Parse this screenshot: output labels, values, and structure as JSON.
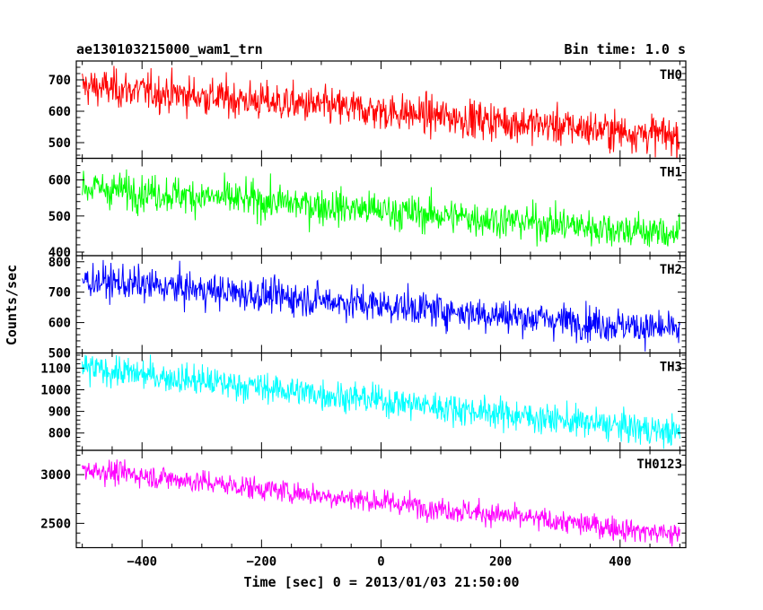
{
  "chart_data": {
    "type": "line",
    "title_left": "ae130103215000_wam1_trn",
    "title_right": "Bin time: 1.0 s",
    "xlabel": "Time [sec] 0 = 2013/01/03 21:50:00",
    "ylabel": "Counts/sec",
    "xlim": [
      -510,
      510
    ],
    "x_ticks": [
      -400,
      -200,
      0,
      200,
      400
    ],
    "x_range": [
      -500,
      500
    ],
    "bin_time": 1.0,
    "panels": [
      {
        "name": "TH0",
        "color": "#ff0000",
        "ylim": [
          450,
          760
        ],
        "y_ticks": [
          500,
          600,
          700
        ],
        "start_level": 680,
        "end_level": 520,
        "noise": 30
      },
      {
        "name": "TH1",
        "color": "#00ff00",
        "ylim": [
          390,
          660
        ],
        "y_ticks": [
          400,
          500,
          600
        ],
        "start_level": 580,
        "end_level": 450,
        "noise": 25
      },
      {
        "name": "TH2",
        "color": "#0000ff",
        "ylim": [
          500,
          820
        ],
        "y_ticks": [
          500,
          600,
          700,
          800
        ],
        "start_level": 740,
        "end_level": 575,
        "noise": 28
      },
      {
        "name": "TH3",
        "color": "#00ffff",
        "ylim": [
          720,
          1170
        ],
        "y_ticks": [
          800,
          900,
          1000,
          1100
        ],
        "start_level": 1100,
        "end_level": 800,
        "noise": 35
      },
      {
        "name": "TH0123",
        "color": "#ff00ff",
        "ylim": [
          2250,
          3250
        ],
        "y_ticks": [
          2500,
          3000
        ],
        "start_level": 3060,
        "end_level": 2380,
        "noise": 60
      }
    ]
  }
}
